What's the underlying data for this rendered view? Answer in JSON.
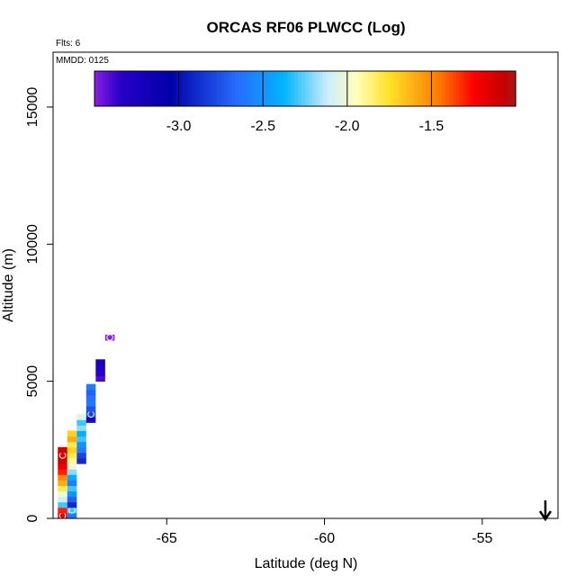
{
  "chart_data": {
    "type": "heatmap",
    "title": "ORCAS RF06 PLWCC (Log)",
    "xlabel": "Latitude (deg N)",
    "ylabel": "Altitude (m)",
    "xlim": [
      -68.6,
      -52.6
    ],
    "ylim": [
      0,
      17000
    ],
    "x_ticks": [
      -65,
      -60,
      -55
    ],
    "y_ticks": [
      0,
      5000,
      10000,
      15000
    ],
    "annotations": {
      "flights": "Flts: 6",
      "date": "MMDD: 0125"
    },
    "colorbar": {
      "range": [
        -3.5,
        -1.0
      ],
      "ticks": [
        -3.0,
        -2.5,
        -2.0,
        -1.5
      ],
      "tick_labels": [
        "-3.0",
        "-2.5",
        "-2.0",
        "-1.5"
      ]
    },
    "arrow_marker": {
      "latitude": -53.0
    },
    "cells": [
      {
        "lat": -68.3,
        "alt": 100,
        "value": -1.2,
        "circle": true
      },
      {
        "lat": -68.3,
        "alt": 300,
        "value": -1.3
      },
      {
        "lat": -68.3,
        "alt": 500,
        "value": -2.3
      },
      {
        "lat": -68.3,
        "alt": 700,
        "value": -2.1
      },
      {
        "lat": -68.3,
        "alt": 900,
        "value": -2.0
      },
      {
        "lat": -68.3,
        "alt": 1100,
        "value": -1.8
      },
      {
        "lat": -68.3,
        "alt": 1300,
        "value": -1.6
      },
      {
        "lat": -68.3,
        "alt": 1500,
        "value": -1.5
      },
      {
        "lat": -68.3,
        "alt": 1700,
        "value": -1.3
      },
      {
        "lat": -68.3,
        "alt": 1900,
        "value": -1.2
      },
      {
        "lat": -68.3,
        "alt": 2100,
        "value": -1.1
      },
      {
        "lat": -68.3,
        "alt": 2300,
        "value": -1.15,
        "circle": true
      },
      {
        "lat": -68.3,
        "alt": 2500,
        "value": -1.1
      },
      {
        "lat": -68.0,
        "alt": 100,
        "value": -2.6
      },
      {
        "lat": -68.0,
        "alt": 300,
        "value": -2.3,
        "circle": true
      },
      {
        "lat": -68.0,
        "alt": 500,
        "value": -2.9
      },
      {
        "lat": -68.0,
        "alt": 700,
        "value": -2.7
      },
      {
        "lat": -68.0,
        "alt": 900,
        "value": -2.5
      },
      {
        "lat": -68.0,
        "alt": 1100,
        "value": -2.3
      },
      {
        "lat": -68.0,
        "alt": 1300,
        "value": -2.6
      },
      {
        "lat": -68.0,
        "alt": 1500,
        "value": -2.4
      },
      {
        "lat": -68.0,
        "alt": 1700,
        "value": -2.2
      },
      {
        "lat": -68.0,
        "alt": 1900,
        "value": -2.0
      },
      {
        "lat": -68.0,
        "alt": 2100,
        "value": -1.9
      },
      {
        "lat": -68.0,
        "alt": 2300,
        "value": -1.8
      },
      {
        "lat": -68.0,
        "alt": 2500,
        "value": -1.7
      },
      {
        "lat": -68.0,
        "alt": 2700,
        "value": -1.8
      },
      {
        "lat": -68.0,
        "alt": 2900,
        "value": -1.6
      },
      {
        "lat": -68.0,
        "alt": 3100,
        "value": -1.7
      },
      {
        "lat": -67.7,
        "alt": 2100,
        "value": -2.9
      },
      {
        "lat": -67.7,
        "alt": 2300,
        "value": -2.8
      },
      {
        "lat": -67.7,
        "alt": 2500,
        "value": -2.6
      },
      {
        "lat": -67.7,
        "alt": 2700,
        "value": -2.5
      },
      {
        "lat": -67.7,
        "alt": 2900,
        "value": -2.3
      },
      {
        "lat": -67.7,
        "alt": 3100,
        "value": -2.4
      },
      {
        "lat": -67.7,
        "alt": 3300,
        "value": -2.2
      },
      {
        "lat": -67.7,
        "alt": 3500,
        "value": -2.3
      },
      {
        "lat": -67.7,
        "alt": 3700,
        "value": -2.05
      },
      {
        "lat": -67.4,
        "alt": 3600,
        "value": -3.3
      },
      {
        "lat": -67.4,
        "alt": 3800,
        "value": -2.8,
        "circle": true
      },
      {
        "lat": -67.4,
        "alt": 4000,
        "value": -2.75
      },
      {
        "lat": -67.4,
        "alt": 4200,
        "value": -2.6
      },
      {
        "lat": -67.4,
        "alt": 4400,
        "value": -2.65
      },
      {
        "lat": -67.4,
        "alt": 4600,
        "value": -2.7
      },
      {
        "lat": -67.4,
        "alt": 4800,
        "value": -2.6
      },
      {
        "lat": -67.1,
        "alt": 5100,
        "value": -3.4
      },
      {
        "lat": -67.1,
        "alt": 5300,
        "value": -3.35
      },
      {
        "lat": -67.1,
        "alt": 5500,
        "value": -3.3
      },
      {
        "lat": -67.1,
        "alt": 5700,
        "value": -3.25
      },
      {
        "lat": -66.8,
        "alt": 6600,
        "value": -3.6,
        "circle": true
      }
    ]
  }
}
